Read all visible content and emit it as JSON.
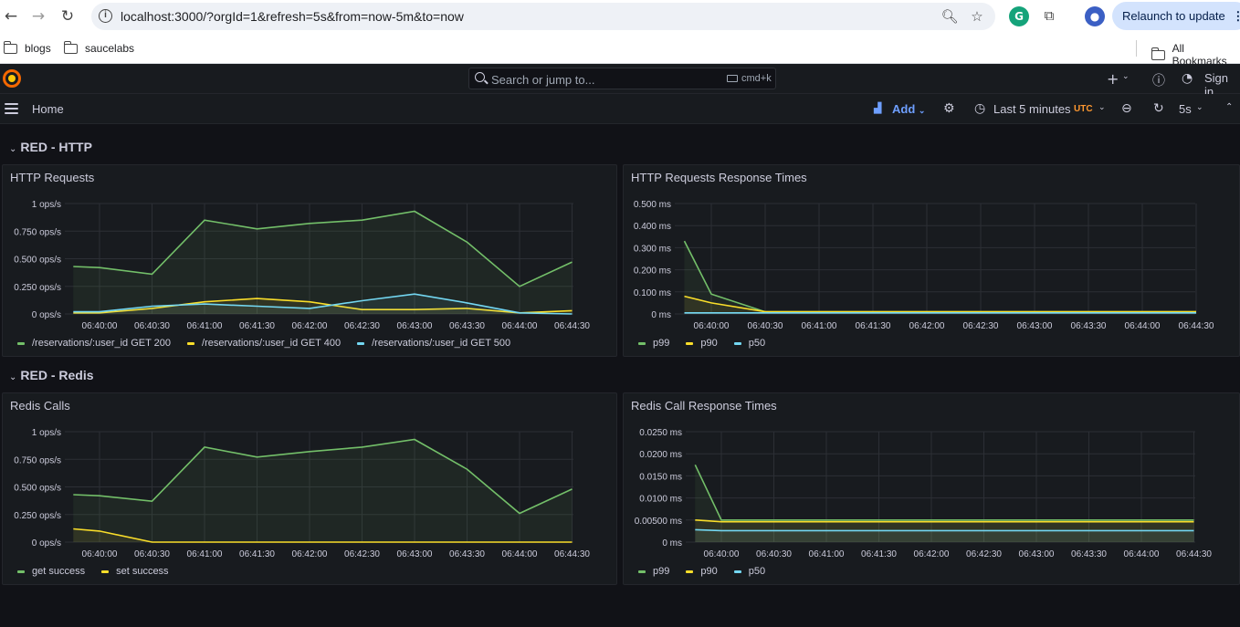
{
  "browser": {
    "url": "localhost:3000/?orgId=1&refresh=5s&from=now-5m&to=now",
    "relaunch_label": "Relaunch to update",
    "bookmarks": [
      "blogs",
      "saucelabs"
    ],
    "all_bookmarks_label": "All Bookmarks"
  },
  "grafana": {
    "search_placeholder": "Search or jump to...",
    "search_shortcut": "cmd+k",
    "sign_in_label": "Sign in",
    "breadcrumb": "Home",
    "add_label": "Add",
    "time_range": "Last 5 minutes",
    "timezone": "UTC",
    "refresh_interval": "5s"
  },
  "rows": [
    {
      "title": "RED - HTTP"
    },
    {
      "title": "RED - Redis"
    }
  ],
  "colors": {
    "green": "#73bf69",
    "yellow": "#fade2a",
    "blue": "#73d7f2"
  },
  "chart_data": [
    {
      "type": "area",
      "title": "HTTP Requests",
      "y_ticks": [
        "1 ops/s",
        "0.750 ops/s",
        "0.500 ops/s",
        "0.250 ops/s",
        "0 ops/s"
      ],
      "x_ticks": [
        "06:40:00",
        "06:40:30",
        "06:41:00",
        "06:41:30",
        "06:42:00",
        "06:42:30",
        "06:43:00",
        "06:43:30",
        "06:44:00",
        "06:44:30"
      ],
      "ylim": [
        0,
        1
      ],
      "x": [
        "06:39:45",
        "06:40:00",
        "06:40:30",
        "06:41:00",
        "06:41:30",
        "06:42:00",
        "06:42:30",
        "06:43:00",
        "06:43:30",
        "06:44:00",
        "06:44:30"
      ],
      "series": [
        {
          "name": "/reservations/:user_id GET 200",
          "color": "#73bf69",
          "values": [
            0.43,
            0.42,
            0.36,
            0.85,
            0.77,
            0.82,
            0.85,
            0.93,
            0.65,
            0.25,
            0.47
          ]
        },
        {
          "name": "/reservations/:user_id GET 400",
          "color": "#fade2a",
          "values": [
            0.01,
            0.01,
            0.05,
            0.11,
            0.14,
            0.11,
            0.04,
            0.04,
            0.05,
            0.01,
            0.03
          ]
        },
        {
          "name": "/reservations/:user_id GET 500",
          "color": "#73d7f2",
          "values": [
            0.02,
            0.02,
            0.07,
            0.09,
            0.07,
            0.05,
            0.12,
            0.18,
            0.1,
            0.01,
            0.0
          ]
        }
      ]
    },
    {
      "type": "area",
      "title": "HTTP Requests Response Times",
      "y_ticks": [
        "0.500 ms",
        "0.400 ms",
        "0.300 ms",
        "0.200 ms",
        "0.100 ms",
        "0 ms"
      ],
      "x_ticks": [
        "06:40:00",
        "06:40:30",
        "06:41:00",
        "06:41:30",
        "06:42:00",
        "06:42:30",
        "06:43:00",
        "06:43:30",
        "06:44:00",
        "06:44:30"
      ],
      "ylim": [
        0,
        0.5
      ],
      "x": [
        "06:39:45",
        "06:40:00",
        "06:40:30",
        "06:41:00",
        "06:41:30",
        "06:42:00",
        "06:42:30",
        "06:43:00",
        "06:43:30",
        "06:44:00",
        "06:44:30"
      ],
      "series": [
        {
          "name": "p99",
          "color": "#73bf69",
          "values": [
            0.33,
            0.09,
            0.01,
            0.01,
            0.01,
            0.01,
            0.01,
            0.01,
            0.01,
            0.01,
            0.01
          ]
        },
        {
          "name": "p90",
          "color": "#fade2a",
          "values": [
            0.08,
            0.05,
            0.01,
            0.01,
            0.01,
            0.01,
            0.01,
            0.01,
            0.01,
            0.01,
            0.01
          ]
        },
        {
          "name": "p50",
          "color": "#73d7f2",
          "values": [
            0.005,
            0.005,
            0.005,
            0.005,
            0.005,
            0.005,
            0.005,
            0.005,
            0.005,
            0.005,
            0.005
          ]
        }
      ]
    },
    {
      "type": "area",
      "title": "Redis Calls",
      "y_ticks": [
        "1 ops/s",
        "0.750 ops/s",
        "0.500 ops/s",
        "0.250 ops/s",
        "0 ops/s"
      ],
      "x_ticks": [
        "06:40:00",
        "06:40:30",
        "06:41:00",
        "06:41:30",
        "06:42:00",
        "06:42:30",
        "06:43:00",
        "06:43:30",
        "06:44:00",
        "06:44:30"
      ],
      "ylim": [
        0,
        1
      ],
      "x": [
        "06:39:45",
        "06:40:00",
        "06:40:30",
        "06:41:00",
        "06:41:30",
        "06:42:00",
        "06:42:30",
        "06:43:00",
        "06:43:30",
        "06:44:00",
        "06:44:30"
      ],
      "series": [
        {
          "name": "get success",
          "color": "#73bf69",
          "values": [
            0.43,
            0.42,
            0.37,
            0.86,
            0.77,
            0.82,
            0.86,
            0.93,
            0.66,
            0.26,
            0.48
          ]
        },
        {
          "name": "set success",
          "color": "#fade2a",
          "values": [
            0.12,
            0.1,
            0.0,
            0.0,
            0.0,
            0.0,
            0.0,
            0.0,
            0.0,
            0.0,
            0.0
          ]
        }
      ]
    },
    {
      "type": "area",
      "title": "Redis Call Response Times",
      "y_ticks": [
        "0.0250 ms",
        "0.0200 ms",
        "0.0150 ms",
        "0.0100 ms",
        "0.00500 ms",
        "0 ms"
      ],
      "x_ticks": [
        "06:40:00",
        "06:40:30",
        "06:41:00",
        "06:41:30",
        "06:42:00",
        "06:42:30",
        "06:43:00",
        "06:43:30",
        "06:44:00",
        "06:44:30"
      ],
      "ylim": [
        0,
        0.025
      ],
      "x": [
        "06:39:45",
        "06:40:00",
        "06:40:30",
        "06:41:00",
        "06:41:30",
        "06:42:00",
        "06:42:30",
        "06:43:00",
        "06:43:30",
        "06:44:00",
        "06:44:30"
      ],
      "series": [
        {
          "name": "p99",
          "color": "#73bf69",
          "values": [
            0.0175,
            0.005,
            0.005,
            0.005,
            0.005,
            0.005,
            0.005,
            0.005,
            0.005,
            0.005,
            0.005
          ]
        },
        {
          "name": "p90",
          "color": "#fade2a",
          "values": [
            0.005,
            0.0046,
            0.0046,
            0.0046,
            0.0046,
            0.0046,
            0.0046,
            0.0046,
            0.0046,
            0.0046,
            0.0046
          ]
        },
        {
          "name": "p50",
          "color": "#73d7f2",
          "values": [
            0.0028,
            0.0026,
            0.0026,
            0.0026,
            0.0026,
            0.0026,
            0.0026,
            0.0026,
            0.0026,
            0.0026,
            0.0026
          ]
        }
      ]
    }
  ]
}
